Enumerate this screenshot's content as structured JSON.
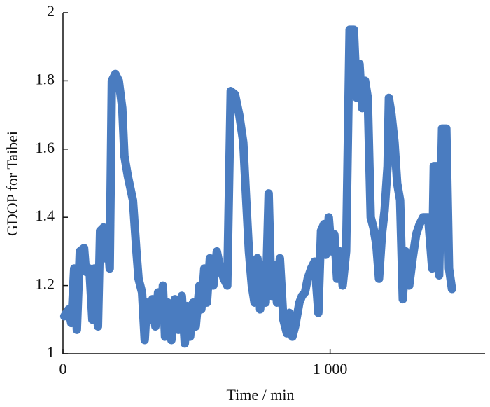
{
  "chart_data": {
    "type": "line",
    "xlabel": "Time / min",
    "ylabel": "GDOP for Taibei",
    "xlim": [
      0,
      1580
    ],
    "ylim": [
      1,
      2
    ],
    "xticks": [
      0,
      {
        "value": 1000,
        "label": "1 000"
      }
    ],
    "yticks": [
      1,
      1.2,
      1.4,
      1.6,
      1.8,
      2
    ],
    "series": [
      {
        "name": "GDOP",
        "color": "#4a7cc0",
        "x": [
          5,
          21,
          31,
          42,
          52,
          63,
          79,
          86,
          99,
          110,
          118,
          131,
          139,
          152,
          157,
          165,
          175,
          183,
          196,
          209,
          222,
          230,
          243,
          262,
          275,
          283,
          296,
          306,
          314,
          322,
          335,
          346,
          356,
          367,
          374,
          382,
          393,
          406,
          419,
          432,
          445,
          456,
          466,
          476,
          487,
          497,
          511,
          518,
          529,
          539,
          550,
          563,
          576,
          589,
          602,
          615,
          628,
          644,
          660,
          675,
          686,
          696,
          707,
          717,
          728,
          738,
          749,
          759,
          770,
          780,
          791,
          801,
          812,
          825,
          838,
          848,
          859,
          869,
          885,
          895,
          906,
          916,
          929,
          942,
          956,
          966,
          977,
          984,
          995,
          1005,
          1016,
          1026,
          1037,
          1047,
          1060,
          1073,
          1089,
          1100,
          1110,
          1120,
          1131,
          1141,
          1152,
          1162,
          1173,
          1183,
          1194,
          1204,
          1215,
          1220,
          1230,
          1241,
          1251,
          1262,
          1272,
          1283,
          1296,
          1309,
          1322,
          1335,
          1348,
          1367,
          1382,
          1388,
          1403,
          1408,
          1419,
          1435,
          1445,
          1456
        ],
        "values": [
          1.11,
          1.13,
          1.09,
          1.25,
          1.07,
          1.3,
          1.31,
          1.24,
          1.25,
          1.1,
          1.25,
          1.08,
          1.36,
          1.37,
          1.28,
          1.35,
          1.25,
          1.8,
          1.82,
          1.8,
          1.72,
          1.58,
          1.52,
          1.45,
          1.3,
          1.22,
          1.18,
          1.04,
          1.15,
          1.1,
          1.16,
          1.08,
          1.18,
          1.1,
          1.2,
          1.05,
          1.15,
          1.04,
          1.16,
          1.07,
          1.17,
          1.03,
          1.14,
          1.05,
          1.15,
          1.08,
          1.2,
          1.13,
          1.25,
          1.15,
          1.28,
          1.2,
          1.3,
          1.25,
          1.22,
          1.2,
          1.77,
          1.76,
          1.7,
          1.62,
          1.45,
          1.3,
          1.2,
          1.15,
          1.28,
          1.13,
          1.26,
          1.15,
          1.47,
          1.17,
          1.26,
          1.15,
          1.28,
          1.1,
          1.06,
          1.12,
          1.05,
          1.08,
          1.15,
          1.17,
          1.18,
          1.22,
          1.25,
          1.27,
          1.12,
          1.36,
          1.38,
          1.29,
          1.4,
          1.3,
          1.35,
          1.22,
          1.3,
          1.2,
          1.3,
          1.95,
          1.95,
          1.75,
          1.85,
          1.72,
          1.8,
          1.75,
          1.4,
          1.37,
          1.32,
          1.22,
          1.35,
          1.42,
          1.55,
          1.75,
          1.7,
          1.62,
          1.5,
          1.45,
          1.16,
          1.3,
          1.2,
          1.28,
          1.35,
          1.38,
          1.4,
          1.4,
          1.25,
          1.55,
          1.55,
          1.23,
          1.66,
          1.66,
          1.25,
          1.19
        ]
      }
    ]
  }
}
